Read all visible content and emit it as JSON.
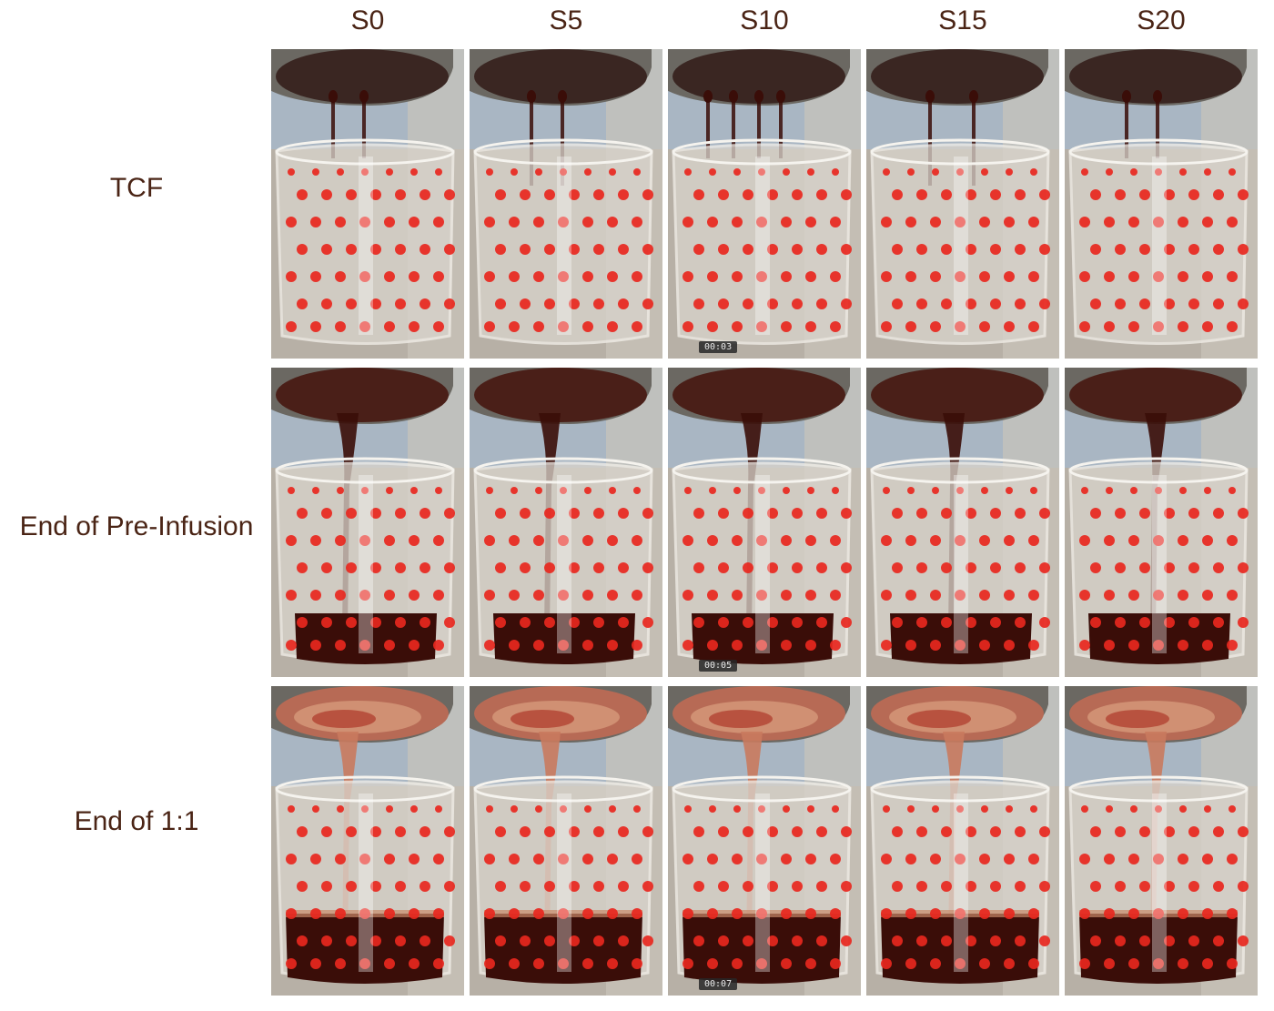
{
  "columns": [
    "S0",
    "S5",
    "S10",
    "S15",
    "S20"
  ],
  "rows": [
    {
      "label": "TCF",
      "stage": "tcf"
    },
    {
      "label": "End of Pre-Infusion",
      "stage": "pre"
    },
    {
      "label": "End of 1:1",
      "stage": "ratio"
    }
  ],
  "timestamps": [
    {
      "row": 0,
      "col": 2,
      "text": "00:03"
    },
    {
      "row": 1,
      "col": 2,
      "text": "00:05"
    },
    {
      "row": 2,
      "col": 2,
      "text": "00:07"
    }
  ],
  "colors": {
    "label_text": "#4a2415",
    "dot_red": "#e8271e",
    "coffee_dark": "#3a0d08",
    "crema": "#c98a6a"
  },
  "photo_subject": "espresso-shot-into-polka-dot-glass"
}
